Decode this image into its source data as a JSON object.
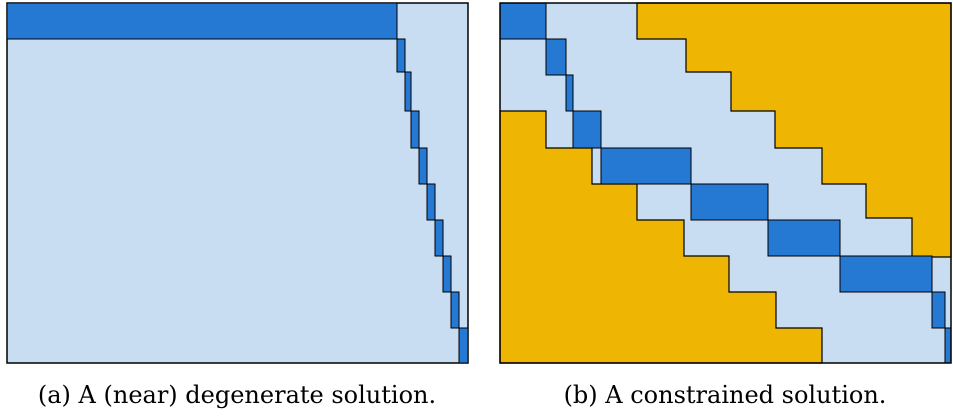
{
  "colors": {
    "background": "#c9ddf2",
    "block": "#2579d3",
    "constraint": "#eeb602",
    "outline": "#000000"
  },
  "panels": [
    {
      "id": "a",
      "caption": "(a) A (near) degenerate solution."
    },
    {
      "id": "b",
      "caption": "(b) A constrained solution."
    }
  ]
}
